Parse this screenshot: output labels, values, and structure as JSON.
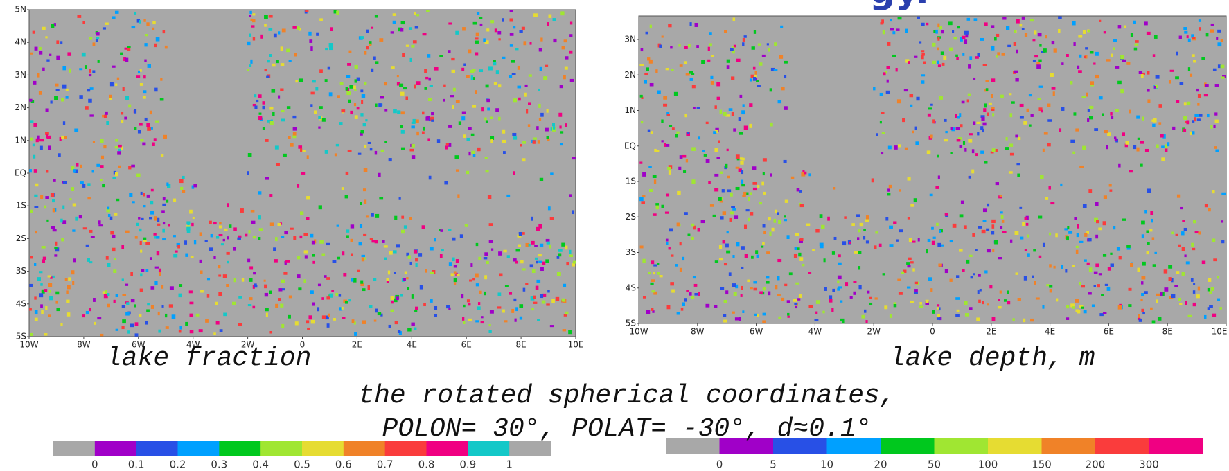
{
  "title_fragment": "gy.",
  "maps": [
    {
      "caption": "lake fraction",
      "yticks": [
        "5N",
        "4N",
        "3N",
        "2N",
        "1N",
        "EQ",
        "1S",
        "2S",
        "3S",
        "4S",
        "5S"
      ],
      "xticks": [
        "10W",
        "8W",
        "6W",
        "4W",
        "2W",
        "0",
        "2E",
        "4E",
        "6E",
        "8E",
        "10E"
      ]
    },
    {
      "caption": "lake depth, m",
      "yticks": [
        "3N",
        "2N",
        "1N",
        "EQ",
        "1S",
        "2S",
        "3S",
        "4S",
        "5S"
      ],
      "xticks": [
        "10W",
        "8W",
        "6W",
        "4W",
        "2W",
        "0",
        "2E",
        "4E",
        "6E",
        "8E",
        "10E"
      ]
    }
  ],
  "note": {
    "line1": "the rotated spherical coordinates,",
    "line2": "POLON= 30°, POLAT= -30°, d≈0.1°"
  },
  "colorbars": [
    {
      "colors": [
        "#a8a8a8",
        "#a000c8",
        "#2850e6",
        "#00a0ff",
        "#00c81e",
        "#a0e632",
        "#e6dc32",
        "#f08228",
        "#fa3c3c",
        "#f00082",
        "#14c8c8",
        "#a8a8a8"
      ],
      "labels": [
        "0",
        "0.1",
        "0.2",
        "0.3",
        "0.4",
        "0.5",
        "0.6",
        "0.7",
        "0.8",
        "0.9",
        "1"
      ]
    },
    {
      "colors": [
        "#a8a8a8",
        "#a000c8",
        "#2850e6",
        "#00a0ff",
        "#00c81e",
        "#a0e632",
        "#e6dc32",
        "#f08228",
        "#fa3c3c",
        "#f00082"
      ],
      "labels": [
        "0",
        "5",
        "10",
        "20",
        "50",
        "100",
        "150",
        "200",
        "300"
      ]
    }
  ]
}
